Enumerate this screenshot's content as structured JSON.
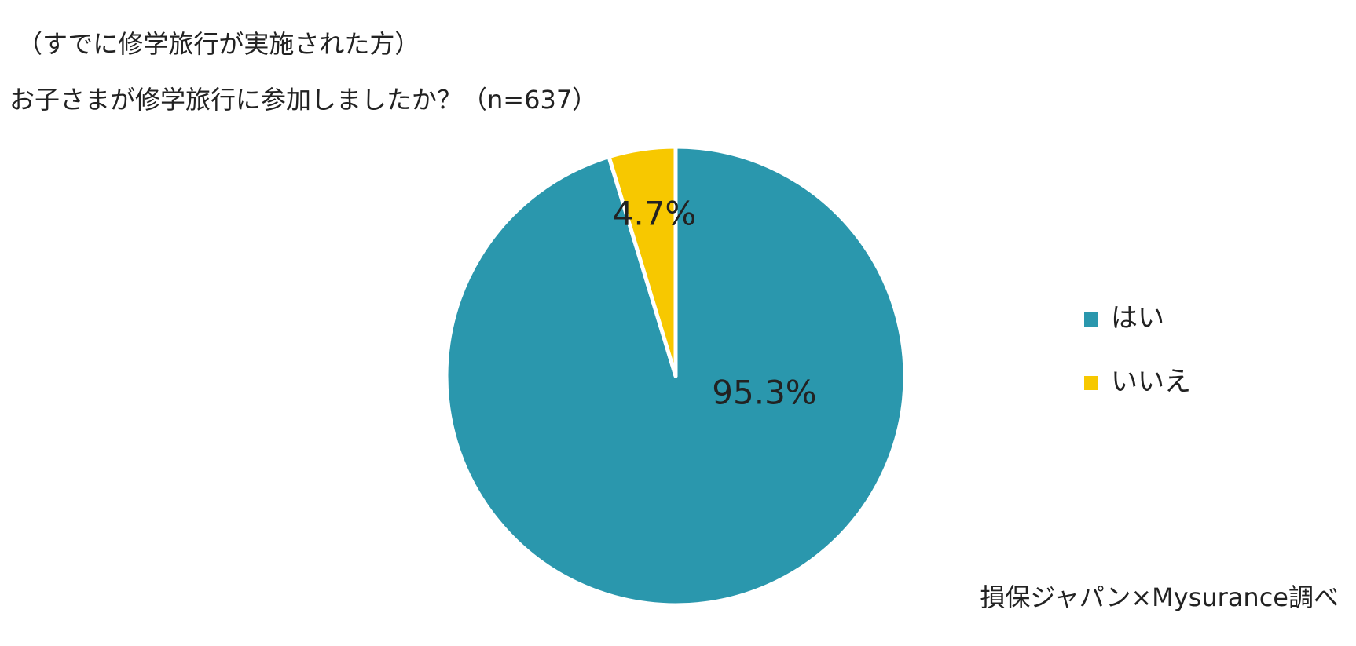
{
  "chart_data": {
    "type": "pie",
    "subtitle": "（すでに修学旅行が実施された方）",
    "title": "お子さまが修学旅行に参加しましたか？（n=637）",
    "categories": [
      "はい",
      "いいえ"
    ],
    "values": [
      95.3,
      4.7
    ],
    "value_labels": [
      "95.3%",
      "4.7%"
    ],
    "colors": [
      "#2a97ad",
      "#f7c800"
    ],
    "source": "損保ジャパン×Mysurance調べ"
  }
}
